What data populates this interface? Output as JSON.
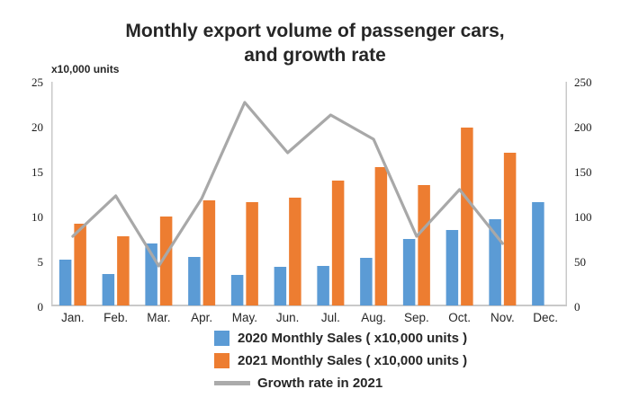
{
  "title": {
    "line1": "Monthly export volume of passenger cars,",
    "line2": "and growth rate"
  },
  "left_axis": {
    "unit_label": "x10,000 units",
    "ticks": [
      25,
      20,
      15,
      10,
      5,
      0
    ]
  },
  "right_axis": {
    "ticks": [
      250,
      200,
      150,
      100,
      50,
      0
    ]
  },
  "chart_data": {
    "type": "bar",
    "subtype": "grouped bars with secondary-axis line",
    "title": "Monthly export volume of passenger cars, and growth rate",
    "categories": [
      "Jan.",
      "Feb.",
      "Mar.",
      "Apr.",
      "May.",
      "Jun.",
      "Jul.",
      "Aug.",
      "Sep.",
      "Oct.",
      "Nov.",
      "Dec."
    ],
    "series": [
      {
        "name": "2020 Monthly Sales ( x10,000 units )",
        "type": "bar",
        "axis": "left",
        "color": "#5B9BD5",
        "values": [
          5.1,
          3.5,
          6.9,
          5.4,
          3.4,
          4.3,
          4.4,
          5.3,
          7.4,
          8.4,
          9.6,
          11.5
        ]
      },
      {
        "name": "2021 Monthly Sales ( x10,000 units )",
        "type": "bar",
        "axis": "left",
        "color": "#ED7D31",
        "values": [
          9.1,
          7.7,
          9.9,
          11.7,
          11.5,
          12.0,
          13.9,
          15.4,
          13.4,
          19.8,
          17.0,
          null
        ]
      },
      {
        "name": "Growth rate in 2021",
        "type": "line",
        "axis": "right",
        "color": "#A8A8A8",
        "values": [
          78,
          123,
          45,
          120,
          227,
          171,
          213,
          186,
          78,
          130,
          70,
          null
        ]
      }
    ],
    "left_ylabel": "x10,000 units",
    "left_ylim": [
      0,
      25
    ],
    "right_ylim": [
      0,
      250
    ],
    "grid": false,
    "legend_position": "bottom"
  },
  "legend": [
    {
      "label": "2020 Monthly Sales ( x10,000 units )",
      "swatch": "square",
      "color": "#5B9BD5"
    },
    {
      "label": "2021 Monthly Sales ( x10,000 units )",
      "swatch": "square",
      "color": "#ED7D31"
    },
    {
      "label": "Growth rate in 2021",
      "swatch": "line",
      "color": "#ABABAB"
    }
  ],
  "colors": {
    "bar_2020": "#5B9BD5",
    "bar_2021": "#ED7D31",
    "growth_line": "#A8A8A8",
    "axis_line": "#C9C9C9",
    "text": "#262626"
  }
}
